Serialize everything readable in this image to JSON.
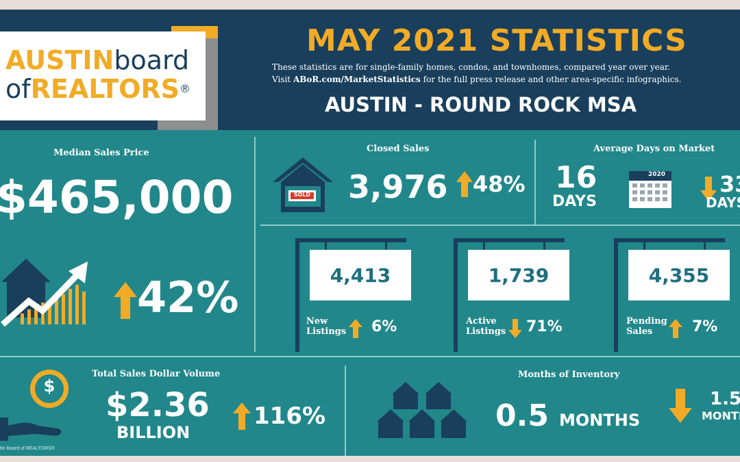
{
  "brand": {
    "logo_line1_a": "AUSTIN",
    "logo_line1_b": "board",
    "logo_line2_a": "of",
    "logo_line2_b": "REALTORS",
    "logo_mark": "®",
    "footer_credit": "tin Board of REALTORS®"
  },
  "header": {
    "title": "MAY 2021 STATISTICS",
    "desc_line1": "These statistics are for single-family homes, condos, and townhomes, compared year over year.",
    "desc_line2_a": "Visit ",
    "desc_line2_link": "ABoR.com/MarketStatistics",
    "desc_line2_b": " for the full press release and other area-specific infographics.",
    "region": "AUSTIN - ROUND ROCK MSA"
  },
  "median_price": {
    "label": "Median Sales Price",
    "value": "$465,000",
    "change": "42%",
    "direction": "up"
  },
  "closed_sales": {
    "label": "Closed Sales",
    "value": "3,976",
    "change": "48%",
    "sign_text": "SOLD",
    "direction": "up"
  },
  "days_on_market": {
    "label": "Average Days on Market",
    "value": "16",
    "unit": "DAYS",
    "calendar_year": "2020",
    "change": "33",
    "change_unit": "DAYS",
    "direction": "down"
  },
  "listings": [
    {
      "value": "4,413",
      "label_l1": "New",
      "label_l2": "Listings",
      "change": "6%",
      "direction": "up"
    },
    {
      "value": "1,739",
      "label_l1": "Active",
      "label_l2": "Listings",
      "change": "71%",
      "direction": "down"
    },
    {
      "value": "4,355",
      "label_l1": "Pending",
      "label_l2": "Sales",
      "change": "7%",
      "direction": "up"
    }
  ],
  "dollar_volume": {
    "label": "Total Sales Dollar Volume",
    "value": "$2.36",
    "unit": "BILLION",
    "change": "116%",
    "icon_glyph": "$",
    "direction": "up"
  },
  "inventory": {
    "label": "Months of  Inventory",
    "value": "0.5",
    "unit": "MONTHS",
    "change": "1.5",
    "change_unit": "MONTH",
    "direction": "down"
  },
  "colors": {
    "teal": "#21878a",
    "navy": "#193f5c",
    "gold": "#f2ab26",
    "white": "#ffffff"
  },
  "icons": [
    "sold-house-icon",
    "calendar-icon",
    "house-growth-chart-icon",
    "dollar-hand-icon",
    "houses-cluster-icon",
    "arrow-up-icon",
    "arrow-down-icon"
  ]
}
